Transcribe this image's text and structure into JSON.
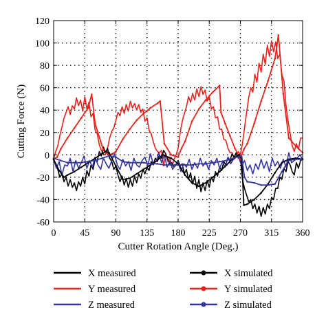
{
  "chart_data": {
    "type": "line",
    "xlabel": "Cutter Rotation Angle (Deg.)",
    "ylabel": "Cutting Force (N)",
    "xlim": [
      0,
      360
    ],
    "ylim": [
      -60,
      120
    ],
    "xticks": [
      0,
      45,
      90,
      135,
      180,
      225,
      270,
      315,
      360
    ],
    "yticks": [
      -60,
      -40,
      -20,
      0,
      20,
      40,
      60,
      80,
      100,
      120
    ],
    "grid": true,
    "legend_position": "bottom",
    "series": [
      {
        "name": "X measured",
        "color": "#000000",
        "marker": "none",
        "width": 1.6,
        "x": [
          0,
          3,
          6,
          9,
          12,
          15,
          18,
          21,
          24,
          27,
          30,
          33,
          36,
          39,
          42,
          45,
          48,
          51,
          54,
          57,
          60,
          63,
          66,
          69,
          72,
          75,
          78,
          81,
          84,
          87,
          90,
          93,
          96,
          99,
          102,
          105,
          108,
          111,
          114,
          117,
          120,
          123,
          126,
          129,
          132,
          135,
          138,
          141,
          144,
          147,
          150,
          153,
          156,
          159,
          162,
          165,
          168,
          171,
          174,
          177,
          180,
          183,
          186,
          189,
          192,
          195,
          198,
          201,
          204,
          207,
          210,
          213,
          216,
          219,
          222,
          225,
          228,
          231,
          234,
          237,
          240,
          243,
          246,
          249,
          252,
          255,
          258,
          261,
          264,
          267,
          270,
          273,
          276,
          279,
          282,
          285,
          288,
          291,
          294,
          297,
          300,
          303,
          306,
          309,
          312,
          315,
          318,
          321,
          324,
          327,
          330,
          333,
          336,
          339,
          342,
          345,
          348,
          351,
          354,
          357,
          360
        ],
        "y": [
          -5,
          -8,
          -13,
          -20,
          -17,
          -24,
          -20,
          -28,
          -22,
          -29,
          -25,
          -32,
          -24,
          -28,
          -20,
          -26,
          -14,
          -19,
          -9,
          -13,
          -4,
          -6,
          3,
          -1,
          7,
          2,
          6,
          -3,
          -6,
          -13,
          -10,
          -18,
          -24,
          -19,
          -27,
          -21,
          -29,
          -22,
          -28,
          -19,
          -25,
          -17,
          -21,
          -13,
          -17,
          -11,
          -14,
          -6,
          -9,
          -3,
          -6,
          0,
          -3,
          4,
          1,
          -4,
          -8,
          -7,
          -11,
          -9,
          -5,
          -10,
          -8,
          -17,
          -13,
          -22,
          -16,
          -26,
          -19,
          -30,
          -22,
          -33,
          -25,
          -32,
          -23,
          -29,
          -20,
          -24,
          -15,
          -19,
          -11,
          -14,
          -6,
          -9,
          -2,
          -5,
          1,
          -2,
          2,
          -3,
          -2,
          -22,
          -30,
          -36,
          -42,
          -40,
          -48,
          -44,
          -52,
          -46,
          -55,
          -47,
          -53,
          -44,
          -48,
          -38,
          -40,
          -30,
          -30,
          -20,
          -22,
          -12,
          -15,
          -6,
          -9,
          -15,
          -18,
          -7,
          -12,
          -5,
          -4
        ]
      },
      {
        "name": "Y measured",
        "color": "#e8231c",
        "marker": "none",
        "width": 1.6,
        "x": [
          0,
          3,
          6,
          9,
          12,
          15,
          18,
          21,
          24,
          27,
          30,
          33,
          36,
          39,
          42,
          45,
          48,
          51,
          54,
          57,
          60,
          63,
          66,
          69,
          72,
          75,
          78,
          81,
          84,
          87,
          90,
          93,
          96,
          99,
          102,
          105,
          108,
          111,
          114,
          117,
          120,
          123,
          126,
          129,
          132,
          135,
          138,
          141,
          144,
          147,
          150,
          153,
          156,
          159,
          162,
          165,
          168,
          171,
          174,
          177,
          180,
          183,
          186,
          189,
          192,
          195,
          198,
          201,
          204,
          207,
          210,
          213,
          216,
          219,
          222,
          225,
          228,
          231,
          234,
          237,
          240,
          243,
          246,
          249,
          252,
          255,
          258,
          261,
          264,
          267,
          270,
          273,
          276,
          279,
          282,
          285,
          288,
          291,
          294,
          297,
          300,
          303,
          306,
          309,
          312,
          315,
          318,
          321,
          324,
          327,
          330,
          333,
          336,
          339,
          342,
          345,
          348,
          351,
          354,
          357,
          360
        ],
        "y": [
          -4,
          3,
          8,
          17,
          25,
          33,
          38,
          43,
          36,
          44,
          41,
          51,
          44,
          49,
          39,
          52,
          41,
          47,
          34,
          37,
          22,
          19,
          9,
          4,
          1,
          0,
          6,
          15,
          21,
          24,
          31,
          38,
          35,
          43,
          37,
          45,
          39,
          48,
          42,
          46,
          40,
          45,
          38,
          41,
          30,
          33,
          22,
          19,
          12,
          6,
          3,
          2,
          4,
          -10,
          1,
          -6,
          -2,
          -11,
          -4,
          0,
          6,
          20,
          30,
          37,
          43,
          52,
          47,
          55,
          49,
          59,
          52,
          61,
          54,
          58,
          48,
          52,
          41,
          43,
          33,
          34,
          23,
          23,
          14,
          13,
          6,
          2,
          2,
          -4,
          -2,
          3,
          0,
          10,
          24,
          38,
          51,
          60,
          56,
          72,
          65,
          82,
          74,
          90,
          81,
          98,
          88,
          102,
          92,
          101,
          86,
          90,
          72,
          66,
          44,
          30,
          19,
          8,
          3,
          10,
          5,
          15,
          15
        ]
      },
      {
        "name": "Z measured",
        "color": "#3535a0",
        "marker": "none",
        "width": 1.6,
        "x": [
          0,
          4,
          8,
          12,
          16,
          20,
          24,
          28,
          32,
          36,
          40,
          44,
          48,
          52,
          56,
          60,
          64,
          68,
          72,
          76,
          80,
          84,
          88,
          92,
          96,
          100,
          104,
          108,
          112,
          116,
          120,
          124,
          128,
          132,
          136,
          140,
          144,
          148,
          152,
          156,
          160,
          164,
          168,
          172,
          176,
          180,
          184,
          188,
          192,
          196,
          200,
          204,
          208,
          212,
          216,
          220,
          224,
          228,
          232,
          236,
          240,
          244,
          248,
          252,
          256,
          260,
          264,
          268,
          272,
          276,
          280,
          284,
          288,
          292,
          296,
          300,
          304,
          308,
          312,
          316,
          320,
          324,
          328,
          332,
          336,
          340,
          344,
          348,
          352,
          356,
          360
        ],
        "y": [
          -4,
          -12,
          -6,
          -18,
          -9,
          -10,
          -3,
          -15,
          -5,
          -12,
          -7,
          -1,
          -12,
          -5,
          -11,
          -2,
          -9,
          -13,
          -3,
          -8,
          -12,
          -5,
          1,
          -9,
          -13,
          -4,
          -10,
          -6,
          -14,
          -3,
          -9,
          -11,
          -5,
          -2,
          -10,
          1,
          -8,
          -6,
          2,
          -7,
          0,
          -11,
          -5,
          -13,
          -9,
          -6,
          -15,
          -8,
          -11,
          -4,
          -13,
          -7,
          -12,
          -3,
          -10,
          -6,
          -13,
          -5,
          -9,
          -3,
          -12,
          -6,
          -11,
          -2,
          -8,
          -4,
          -1,
          -3,
          -10,
          -5,
          -14,
          -9,
          -17,
          -8,
          -13,
          -4,
          -12,
          -6,
          -15,
          -3,
          -10,
          -6,
          -12,
          -4,
          -11,
          2,
          -7,
          -5,
          -3,
          0,
          -4
        ]
      },
      {
        "name": "X simulated",
        "color": "#000000",
        "marker": "dot",
        "width": 1.8,
        "x": [
          0,
          8,
          15,
          20,
          30,
          40,
          50,
          60,
          70,
          75,
          80,
          90,
          100,
          110,
          120,
          130,
          140,
          150,
          158,
          165,
          170,
          180,
          190,
          200,
          210,
          220,
          230,
          240,
          250,
          260,
          268,
          272,
          275,
          280,
          290,
          300,
          310,
          320,
          330,
          340,
          350,
          360
        ],
        "y": [
          -4,
          -14,
          -20,
          -18,
          -15,
          -11,
          -7,
          -3,
          1,
          3,
          2,
          -10,
          -22,
          -21,
          -17,
          -13,
          -9,
          -5,
          0,
          -2,
          -3,
          -8,
          -18,
          -25,
          -28,
          -25,
          -20,
          -15,
          -9,
          -3,
          0,
          -4,
          -45,
          -44,
          -40,
          -34,
          -26,
          -16,
          -7,
          -4,
          -3,
          -4
        ]
      },
      {
        "name": "Y simulated",
        "color": "#e8231c",
        "marker": "dot",
        "width": 1.8,
        "x": [
          0,
          5,
          10,
          20,
          30,
          40,
          50,
          55,
          60,
          68,
          72,
          80,
          85,
          90,
          100,
          110,
          120,
          130,
          140,
          150,
          154,
          160,
          170,
          180,
          185,
          190,
          200,
          210,
          220,
          230,
          240,
          242,
          248,
          255,
          262,
          270,
          275,
          280,
          290,
          300,
          310,
          320,
          325,
          332,
          340,
          350,
          360
        ],
        "y": [
          -4,
          -2,
          5,
          15,
          24,
          33,
          42,
          54,
          28,
          12,
          4,
          0,
          1,
          3,
          14,
          23,
          31,
          37,
          42,
          46,
          48,
          10,
          0,
          -2,
          6,
          12,
          30,
          41,
          49,
          56,
          62,
          38,
          28,
          17,
          6,
          -4,
          5,
          10,
          28,
          48,
          66,
          86,
          107,
          55,
          15,
          8,
          2
        ]
      },
      {
        "name": "Z simulated",
        "color": "#3535a0",
        "marker": "dot",
        "width": 1.8,
        "x": [
          0,
          10,
          20,
          30,
          40,
          50,
          60,
          70,
          80,
          90,
          100,
          110,
          120,
          130,
          140,
          150,
          160,
          170,
          180,
          190,
          200,
          210,
          220,
          230,
          240,
          250,
          260,
          270,
          272,
          276,
          280,
          290,
          300,
          310,
          320,
          330,
          340,
          350,
          360
        ],
        "y": [
          -3,
          -5,
          -7,
          -7,
          -7,
          -6,
          -5,
          -3,
          -1,
          -2,
          -6,
          -7,
          -7,
          -7,
          -8,
          -8,
          -9,
          -9,
          -9,
          -9,
          -9,
          -8,
          -8,
          -7,
          -6,
          -5,
          -3,
          -1,
          -2,
          -20,
          -24,
          -25,
          -27,
          -27,
          -26,
          -15,
          -5,
          -4,
          -4
        ]
      }
    ]
  }
}
